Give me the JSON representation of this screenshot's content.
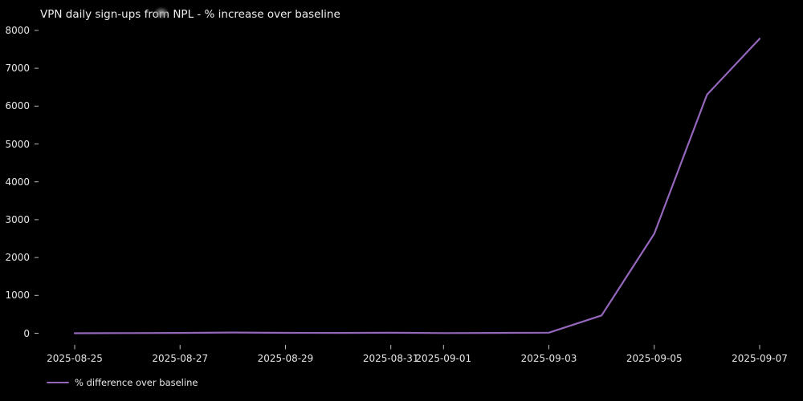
{
  "chart_data": {
    "type": "line",
    "title": "VPN daily sign-ups from NPL - % increase over baseline",
    "x": [
      "2025-08-25",
      "2025-08-26",
      "2025-08-27",
      "2025-08-28",
      "2025-08-29",
      "2025-08-30",
      "2025-08-31",
      "2025-09-01",
      "2025-09-02",
      "2025-09-03",
      "2025-09-04",
      "2025-09-05",
      "2025-09-06",
      "2025-09-07"
    ],
    "series": [
      {
        "name": "% difference over baseline",
        "values": [
          0,
          5,
          8,
          20,
          10,
          8,
          12,
          5,
          8,
          15,
          470,
          2630,
          6300,
          7780
        ],
        "color": "#9467bd"
      }
    ],
    "xlabel": "",
    "ylabel": "",
    "ylim": [
      0,
      8000
    ],
    "yticks": [
      0,
      1000,
      2000,
      3000,
      4000,
      5000,
      6000,
      7000,
      8000
    ],
    "xtick_labels": [
      "2025-08-25",
      "2025-08-27",
      "2025-08-29",
      "2025-08-31",
      "2025-09-01",
      "2025-09-03",
      "2025-09-05",
      "2025-09-07"
    ],
    "grid": false,
    "legend_position": "bottom-left",
    "background_color": "#000000",
    "text_color": "#eeeeee",
    "tick_mark_color": "#bbbbbb"
  }
}
